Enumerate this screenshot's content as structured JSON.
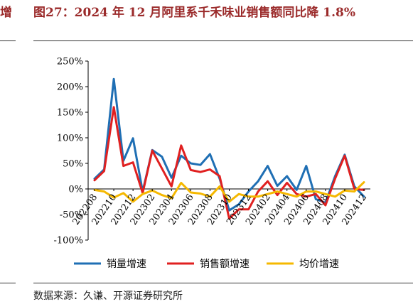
{
  "left_fragment": "增",
  "title": "图27：2024 年 12 月阿里系千禾味业销售额同比降 1.8%",
  "source": "数据来源：久谦、开源证券研究所",
  "chart_data": {
    "type": "line",
    "title": "图27：2024 年 12 月阿里系千禾味业销售额同比降 1.8%",
    "xlabel": "",
    "ylabel": "",
    "ylim": [
      -100,
      250
    ],
    "y_ticks": [
      "-100%",
      "-50%",
      "0%",
      "50%",
      "100%",
      "150%",
      "200%",
      "250%"
    ],
    "y_tick_values": [
      -100,
      -50,
      0,
      50,
      100,
      150,
      200,
      250
    ],
    "x_tick_labels": [
      "202208",
      "202210",
      "202212",
      "202302",
      "202304",
      "202306",
      "202308",
      "202310",
      "202312",
      "202402",
      "202404",
      "202406",
      "202408",
      "202410",
      "202412"
    ],
    "x": [
      "202208",
      "202209",
      "202210",
      "202211",
      "202212",
      "202301",
      "202302",
      "202303",
      "202304",
      "202305",
      "202306",
      "202307",
      "202308",
      "202309",
      "202310",
      "202311",
      "202312",
      "202401",
      "202402",
      "202403",
      "202404",
      "202405",
      "202406",
      "202407",
      "202408",
      "202409",
      "202410",
      "202411",
      "202412"
    ],
    "grid": false,
    "legend_position": "bottom",
    "series": [
      {
        "name": "销量增速",
        "color": "#1f6fb4",
        "values": [
          20,
          38,
          215,
          55,
          99,
          -5,
          76,
          63,
          22,
          65,
          50,
          47,
          68,
          20,
          -42,
          -30,
          -5,
          15,
          45,
          6,
          25,
          -2,
          45,
          -20,
          -27,
          25,
          67,
          5,
          -15
        ]
      },
      {
        "name": "销售额增速",
        "color": "#e02020",
        "values": [
          17,
          35,
          160,
          45,
          52,
          -8,
          75,
          40,
          5,
          85,
          37,
          33,
          38,
          25,
          -58,
          -40,
          -40,
          -5,
          15,
          -12,
          12,
          -10,
          -15,
          -10,
          -32,
          20,
          65,
          0,
          -2
        ]
      },
      {
        "name": "均价增速",
        "color": "#f5b800",
        "values": [
          -2,
          -5,
          -17,
          -8,
          -25,
          -10,
          -3,
          -12,
          -18,
          12,
          -7,
          -9,
          -15,
          5,
          -25,
          -10,
          -15,
          -15,
          -10,
          -5,
          -10,
          -15,
          -5,
          -5,
          -10,
          -15,
          -3,
          -5,
          13
        ]
      }
    ]
  }
}
